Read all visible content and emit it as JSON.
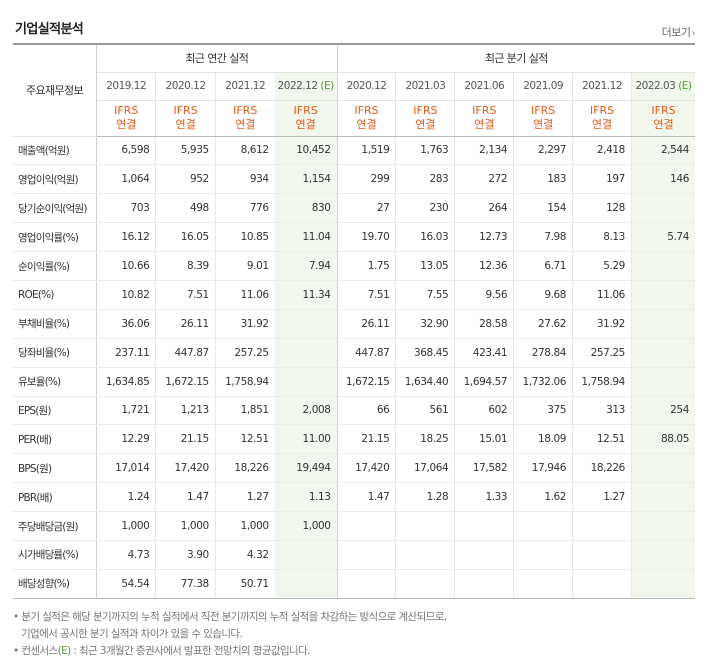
{
  "title": "기업실적분석",
  "more_label": "더보기",
  "header": {
    "row_label": "주요재무정보",
    "annual_group": "최근 연간 실적",
    "quarter_group": "최근 분기 실적",
    "annual_periods": [
      "2019.12",
      "2020.12",
      "2021.12",
      "2022.12"
    ],
    "quarter_periods": [
      "2020.12",
      "2021.03",
      "2021.06",
      "2021.09",
      "2021.12",
      "2022.03"
    ],
    "estimate_mark": "(E)",
    "ifrs_line1": "IFRS",
    "ifrs_line2": "연결"
  },
  "rows": [
    {
      "label": "매출액(억원)",
      "annual": [
        "6,598",
        "5,935",
        "8,612",
        "10,452"
      ],
      "quarter": [
        "1,519",
        "1,763",
        "2,134",
        "2,297",
        "2,418",
        "2,544"
      ]
    },
    {
      "label": "영업이익(억원)",
      "annual": [
        "1,064",
        "952",
        "934",
        "1,154"
      ],
      "quarter": [
        "299",
        "283",
        "272",
        "183",
        "197",
        "146"
      ]
    },
    {
      "label": "당기순이익(억원)",
      "annual": [
        "703",
        "498",
        "776",
        "830"
      ],
      "quarter": [
        "27",
        "230",
        "264",
        "154",
        "128",
        ""
      ]
    },
    {
      "label": "영업이익률(%)",
      "annual": [
        "16.12",
        "16.05",
        "10.85",
        "11.04"
      ],
      "quarter": [
        "19.70",
        "16.03",
        "12.73",
        "7.98",
        "8.13",
        "5.74"
      ]
    },
    {
      "label": "순이익률(%)",
      "annual": [
        "10.66",
        "8.39",
        "9.01",
        "7.94"
      ],
      "quarter": [
        "1.75",
        "13.05",
        "12.36",
        "6.71",
        "5.29",
        ""
      ]
    },
    {
      "label": "ROE(%)",
      "annual": [
        "10.82",
        "7.51",
        "11.06",
        "11.34"
      ],
      "quarter": [
        "7.51",
        "7.55",
        "9.56",
        "9.68",
        "11.06",
        ""
      ]
    },
    {
      "label": "부채비율(%)",
      "annual": [
        "36.06",
        "26.11",
        "31.92",
        ""
      ],
      "quarter": [
        "26.11",
        "32.90",
        "28.58",
        "27.62",
        "31.92",
        ""
      ]
    },
    {
      "label": "당좌비율(%)",
      "annual": [
        "237.11",
        "447.87",
        "257.25",
        ""
      ],
      "quarter": [
        "447.87",
        "368.45",
        "423.41",
        "278.84",
        "257.25",
        ""
      ]
    },
    {
      "label": "유보율(%)",
      "annual": [
        "1,634.85",
        "1,672.15",
        "1,758.94",
        ""
      ],
      "quarter": [
        "1,672.15",
        "1,634.40",
        "1,694.57",
        "1,732.06",
        "1,758.94",
        ""
      ]
    },
    {
      "label": "EPS(원)",
      "annual": [
        "1,721",
        "1,213",
        "1,851",
        "2,008"
      ],
      "quarter": [
        "66",
        "561",
        "602",
        "375",
        "313",
        "254"
      ]
    },
    {
      "label": "PER(배)",
      "annual": [
        "12.29",
        "21.15",
        "12.51",
        "11.00"
      ],
      "quarter": [
        "21.15",
        "18.25",
        "15.01",
        "18.09",
        "12.51",
        "88.05"
      ]
    },
    {
      "label": "BPS(원)",
      "annual": [
        "17,014",
        "17,420",
        "18,226",
        "19,494"
      ],
      "quarter": [
        "17,420",
        "17,064",
        "17,582",
        "17,946",
        "18,226",
        ""
      ]
    },
    {
      "label": "PBR(배)",
      "annual": [
        "1.24",
        "1.47",
        "1.27",
        "1.13"
      ],
      "quarter": [
        "1.47",
        "1.28",
        "1.33",
        "1.62",
        "1.27",
        ""
      ]
    },
    {
      "label": "주당배당금(원)",
      "annual": [
        "1,000",
        "1,000",
        "1,000",
        "1,000"
      ],
      "quarter": [
        "",
        "",
        "",
        "",
        "",
        ""
      ]
    },
    {
      "label": "시가배당률(%)",
      "annual": [
        "4.73",
        "3.90",
        "4.32",
        ""
      ],
      "quarter": [
        "",
        "",
        "",
        "",
        "",
        ""
      ]
    },
    {
      "label": "배당성향(%)",
      "annual": [
        "54.54",
        "77.38",
        "50.71",
        ""
      ],
      "quarter": [
        "",
        "",
        "",
        "",
        "",
        ""
      ]
    }
  ],
  "notes": {
    "line1": "• 분기 실적은 해당 분기까지의 누적 실적에서 직전 분기까지의 누적 실적을 차감하는 방식으로 계산되므로,",
    "line2": "기업에서 공시한 분기 실적과 차이가 있을 수 있습니다.",
    "line3_prefix": "• 컨센서스(",
    "line3_mark": "E",
    "line3_suffix": ") : 최근 3개월간 증권사에서 발표한 전망치의 평균값입니다."
  }
}
